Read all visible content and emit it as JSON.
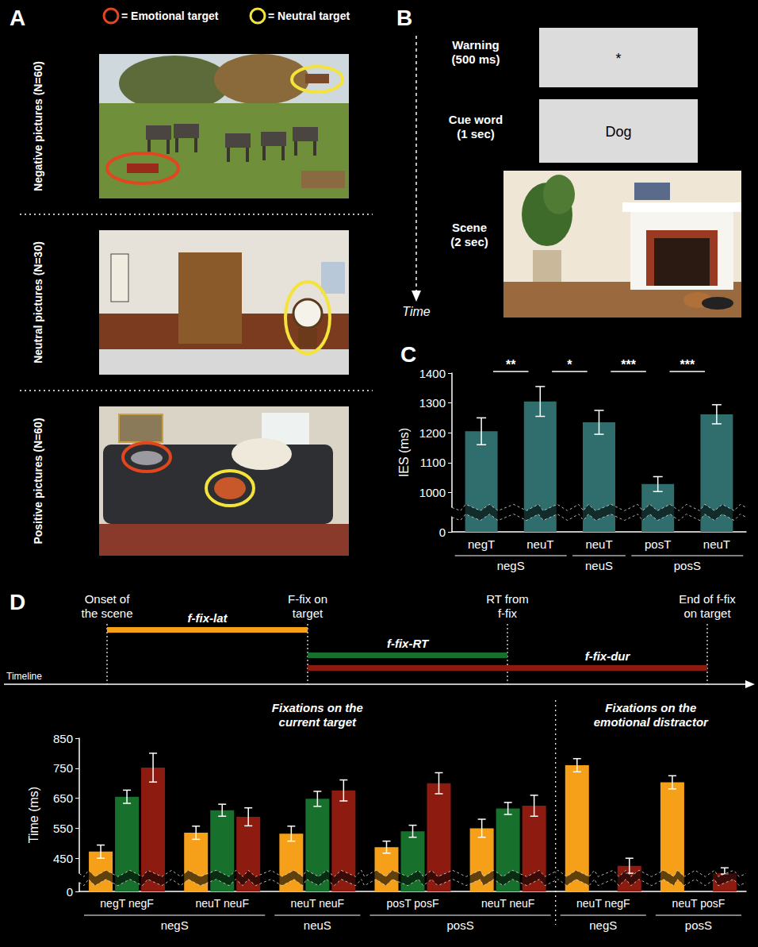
{
  "panels": {
    "A": {
      "letter": "A",
      "legend": [
        {
          "label": "= Emotional target",
          "color": "#e2461f"
        },
        {
          "label": "= Neutral target",
          "color": "#f3e33b"
        }
      ],
      "rows": [
        "Negative pictures (N=60)",
        "Neutral pictures (N=30)",
        "Positive pictures (N=60)"
      ]
    },
    "B": {
      "letter": "B",
      "steps": [
        {
          "label": "Warning",
          "duration": "(500 ms)",
          "screen_text": "*"
        },
        {
          "label": "Cue word",
          "duration": "(1 sec)",
          "screen_text": "Dog"
        },
        {
          "label": "Scene",
          "duration": "(2 sec)"
        }
      ],
      "time_label": "Time"
    },
    "D_timeline": {
      "letter": "D",
      "events": [
        "Onset of the scene",
        "F-fix on target",
        "RT from f-fix",
        "End of f-fix on target"
      ],
      "axis_label": "Timeline"
    }
  },
  "chart_data": [
    {
      "type": "bar",
      "letter": "C",
      "ylabel": "IES (ms)",
      "categories": [
        "negT",
        "neuT",
        "neuT",
        "posT",
        "neuT"
      ],
      "groups": [
        "negS",
        "negS",
        "neuS",
        "posS",
        "posS"
      ],
      "values": [
        1205,
        1305,
        1235,
        1028,
        1262
      ],
      "errors": [
        45,
        50,
        40,
        25,
        32
      ],
      "color": "#2f6e6c",
      "ylim": [
        0,
        1400
      ],
      "yticks": [
        0,
        1000,
        1100,
        1200,
        1300,
        1400
      ],
      "y_break": [
        50,
        950
      ],
      "significance": [
        {
          "between": [
            0,
            1
          ],
          "label": "**"
        },
        {
          "between": [
            1,
            2
          ],
          "label": "*"
        },
        {
          "between": [
            2,
            3
          ],
          "label": "***"
        },
        {
          "between": [
            3,
            4
          ],
          "label": "***"
        }
      ]
    },
    {
      "type": "bar",
      "ylabel": "Time (ms)",
      "categories": [
        "negT negF",
        "neuT neuF",
        "neuT neuF",
        "posT posF",
        "neuT neuF",
        "neuT negF",
        "neuT posF"
      ],
      "groups": [
        "negS",
        "negS",
        "neuS",
        "posS",
        "posS",
        "negS",
        "posS"
      ],
      "sections": [
        {
          "title": "Fixations on the current target",
          "first": 0,
          "last": 4
        },
        {
          "title": "Fixations on the emotional distractor",
          "first": 5,
          "last": 6
        }
      ],
      "series": [
        {
          "name": "f-fix-lat",
          "color": "#f6a01a",
          "values": [
            472,
            535,
            532,
            487,
            550,
            760,
            703
          ],
          "errors": [
            22,
            22,
            25,
            20,
            30,
            22,
            22
          ]
        },
        {
          "name": "f-fix-RT",
          "color": "#17702b",
          "values": [
            655,
            610,
            648,
            540,
            616,
            null,
            null
          ],
          "errors": [
            22,
            20,
            25,
            20,
            20,
            null,
            null
          ]
        },
        {
          "name": "f-fix-dur",
          "color": "#8e1b10",
          "values": [
            752,
            588,
            676,
            700,
            625,
            425,
            393
          ],
          "errors": [
            48,
            30,
            35,
            35,
            35,
            25,
            25
          ]
        }
      ],
      "ylim": [
        0,
        850
      ],
      "yticks": [
        0,
        450,
        550,
        650,
        750,
        850
      ],
      "y_break": [
        30,
        400
      ]
    }
  ]
}
